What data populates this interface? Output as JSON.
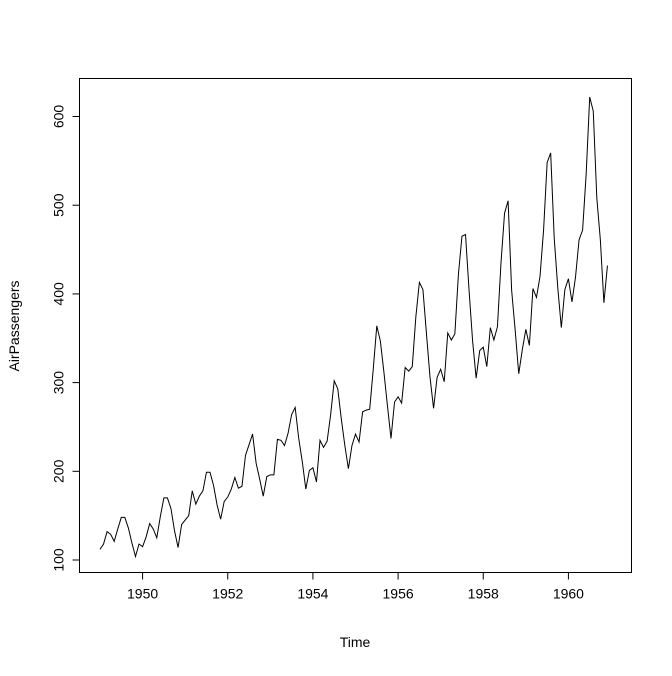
{
  "chart_data": {
    "type": "line",
    "title": "",
    "xlabel": "Time",
    "ylabel": "AirPassengers",
    "xlim": [
      1949,
      1961
    ],
    "ylim": [
      100,
      622
    ],
    "x_ticks": [
      1950,
      1952,
      1954,
      1956,
      1958,
      1960
    ],
    "y_ticks": [
      100,
      200,
      300,
      400,
      500,
      600
    ],
    "grid": false,
    "legend": "none",
    "line_color": "#000000",
    "x_start": 1949,
    "x_step": 0.08333333333333333,
    "series": [
      {
        "values": [
          112,
          118,
          132,
          129,
          121,
          135,
          148,
          148,
          136,
          119,
          104,
          118,
          115,
          126,
          141,
          135,
          125,
          149,
          170,
          170,
          158,
          133,
          114,
          140,
          145,
          150,
          178,
          163,
          172,
          178,
          199,
          199,
          184,
          162,
          146,
          166,
          171,
          180,
          193,
          181,
          183,
          218,
          230,
          242,
          209,
          191,
          172,
          194,
          196,
          196,
          236,
          235,
          229,
          243,
          264,
          272,
          237,
          211,
          180,
          201,
          204,
          188,
          235,
          227,
          234,
          264,
          302,
          293,
          259,
          229,
          203,
          229,
          242,
          233,
          267,
          269,
          270,
          315,
          364,
          347,
          312,
          274,
          237,
          278,
          284,
          277,
          317,
          313,
          318,
          374,
          413,
          405,
          355,
          306,
          271,
          306,
          315,
          301,
          356,
          348,
          355,
          422,
          465,
          467,
          404,
          347,
          305,
          336,
          340,
          318,
          362,
          348,
          363,
          435,
          491,
          505,
          404,
          359,
          310,
          337,
          360,
          342,
          406,
          396,
          420,
          472,
          548,
          559,
          463,
          407,
          362,
          405,
          417,
          391,
          419,
          461,
          472,
          535,
          622,
          606,
          508,
          461,
          390,
          432
        ]
      }
    ]
  }
}
